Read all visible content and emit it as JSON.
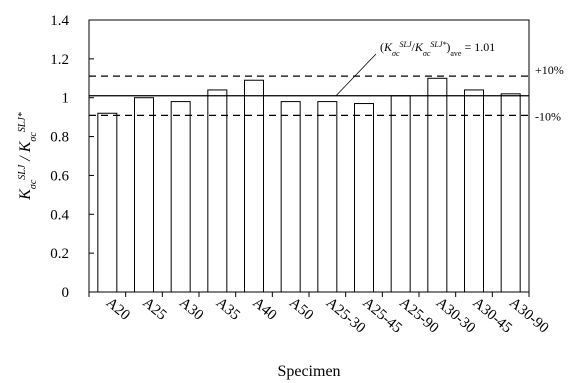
{
  "chart_data": {
    "type": "bar",
    "categories": [
      "A20",
      "A25",
      "A30",
      "A35",
      "A40",
      "A50",
      "A25-30",
      "A25-45",
      "A25-90",
      "A30-30",
      "A30-45",
      "A30-90"
    ],
    "values": [
      0.92,
      1.0,
      0.98,
      1.04,
      1.09,
      0.98,
      0.98,
      0.97,
      1.01,
      1.1,
      1.04,
      1.02
    ],
    "xlabel": "Specimen",
    "ylabel": "K_σc^SLJ / K_σc^SLJ*",
    "ylim": [
      0,
      1.4
    ],
    "yticks": [
      0,
      0.2,
      0.4,
      0.6,
      0.8,
      1,
      1.2,
      1.4
    ],
    "ytick_labels": [
      "0",
      "0.2",
      "0.4",
      "0.6",
      "0.8",
      "1",
      "1.2",
      "1.4"
    ],
    "grid": false,
    "reference_lines": [
      {
        "id": "ave",
        "value": 1.01,
        "style": "solid",
        "label": "(K_σc^SLJ/K_σc^SLJ*)ave = 1.01"
      },
      {
        "id": "plus10",
        "value": 1.111,
        "style": "dashed",
        "label": "+10%"
      },
      {
        "id": "minus10",
        "value": 0.909,
        "style": "dashed",
        "label": "-10%"
      }
    ],
    "colors": {
      "bar_fill": "#ffffff",
      "bar_stroke": "#000000",
      "axis": "#000000"
    }
  }
}
